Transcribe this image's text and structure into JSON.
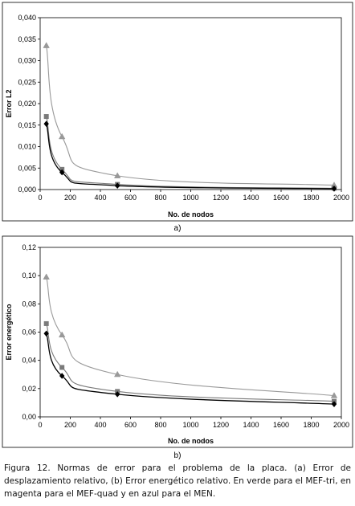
{
  "chart_data": [
    {
      "type": "line",
      "xlabel": "No. de nodos",
      "ylabel": "Error L2",
      "xlim": [
        0,
        2000
      ],
      "ylim": [
        0,
        0.04
      ],
      "x_ticks": [
        "0",
        "200",
        "400",
        "600",
        "800",
        "1000",
        "1200",
        "1400",
        "1600",
        "1800",
        "2000"
      ],
      "y_ticks": [
        "0,000",
        "0,005",
        "0,010",
        "0,015",
        "0,020",
        "0,025",
        "0,030",
        "0,035",
        "0,040"
      ],
      "grid": false,
      "legend": "none",
      "label": "a)",
      "series": [
        {
          "marker": "triangle",
          "color": "#999999",
          "x": [
            41,
            145,
            513,
            1952
          ],
          "y": [
            0.0335,
            0.0123,
            0.0032,
            0.001
          ]
        },
        {
          "marker": "square",
          "color": "#7a7a7a",
          "x": [
            41,
            145,
            513,
            1952
          ],
          "y": [
            0.017,
            0.0047,
            0.0012,
            0.0003
          ]
        },
        {
          "marker": "diamond",
          "color": "#000000",
          "x": [
            41,
            145,
            513,
            1952
          ],
          "y": [
            0.0153,
            0.004,
            0.0009,
            0.0002
          ]
        }
      ]
    },
    {
      "type": "line",
      "xlabel": "No. de nodos",
      "ylabel": "Error energético",
      "xlim": [
        0,
        2000
      ],
      "ylim": [
        0,
        0.12
      ],
      "x_ticks": [
        "0",
        "200",
        "400",
        "600",
        "800",
        "1000",
        "1200",
        "1400",
        "1600",
        "1800",
        "2000"
      ],
      "y_ticks": [
        "0,00",
        "0,02",
        "0,04",
        "0,06",
        "0,08",
        "0,10",
        "0,12"
      ],
      "grid": false,
      "legend": "none",
      "label": "b)",
      "series": [
        {
          "marker": "triangle",
          "color": "#999999",
          "x": [
            41,
            145,
            513,
            1952
          ],
          "y": [
            0.099,
            0.058,
            0.03,
            0.015
          ]
        },
        {
          "marker": "square",
          "color": "#7a7a7a",
          "x": [
            41,
            145,
            513,
            1952
          ],
          "y": [
            0.066,
            0.035,
            0.018,
            0.011
          ]
        },
        {
          "marker": "diamond",
          "color": "#000000",
          "x": [
            41,
            145,
            513,
            1952
          ],
          "y": [
            0.059,
            0.029,
            0.016,
            0.009
          ]
        }
      ]
    }
  ],
  "caption": "Figura 12. Normas de error para el problema de la placa. (a) Error de desplazamiento relativo, (b) Error energético relativo. En verde para el MEF-tri, en magenta para el MEF-quad y en azul para el MEN."
}
